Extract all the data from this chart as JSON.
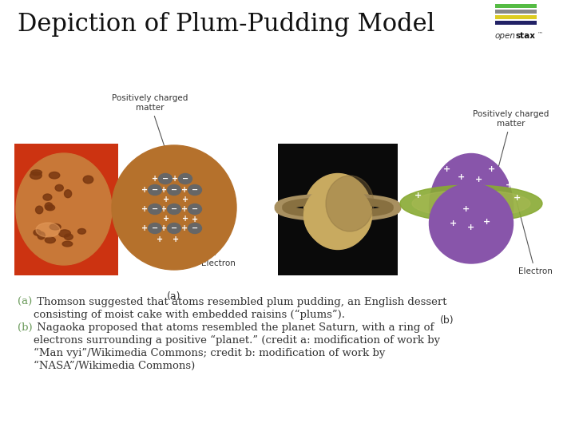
{
  "title": "Depiction of Plum-Pudding Model",
  "title_fontsize": 22,
  "title_color": "#111111",
  "bg_color": "#ffffff",
  "caption_color": "#6a9a5a",
  "annotation_color": "#333333",
  "annotation_fontsize": 7.5,
  "caption_fontsize": 9.5,
  "plum_pudding_color": "#b5712c",
  "electron_color": "#666666",
  "nucleus_color": "#8855aa",
  "ring_color": "#88aa33",
  "pos_charged_matter_text": "Positively charged\nmatter",
  "electron_text": "Electron",
  "panel_a_label": "(a)",
  "panel_b_label": "(b)",
  "logo_bar_colors": [
    "#55bb44",
    "#888888",
    "#ddcc22",
    "#222266"
  ],
  "caption_lines_a1": "(a) Thomson suggested that atoms resembled plum pudding, an English dessert",
  "caption_lines_a2": "      consisting of moist cake with embedded raisins (“plums”).",
  "caption_lines_b1": "(b) Nagaoka proposed that atoms resembled the planet Saturn, with a ring of",
  "caption_lines_b2": "      electrons surrounding a positive “planet.” (credit a: modification of work by",
  "caption_lines_b3": "      “Man vyi”/Wikimedia Commons; credit b: modification of work by",
  "caption_lines_b4": "      “NASA”/Wikimedia Commons)"
}
